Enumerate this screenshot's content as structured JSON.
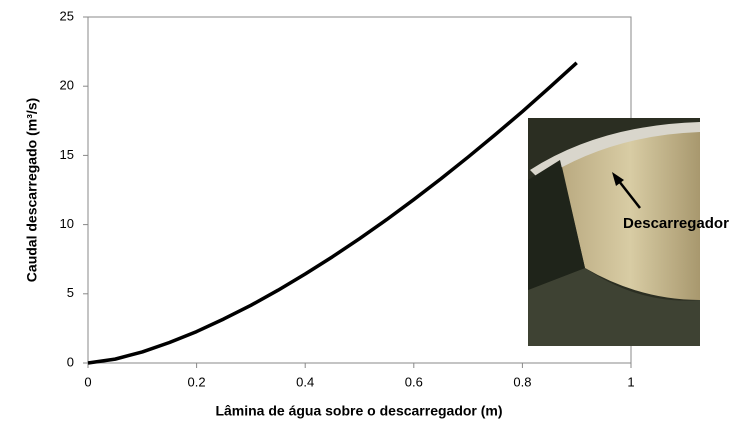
{
  "chart_data": {
    "type": "line",
    "x_label": "Lâmina de água sobre o descarregador (m)",
    "y_label": "Caudal descarregado (m³/s)",
    "annotation": "Descarregador",
    "x": [
      0,
      0.05,
      0.1,
      0.15,
      0.2,
      0.25,
      0.3,
      0.35,
      0.4,
      0.45,
      0.5,
      0.55,
      0.6,
      0.65,
      0.7,
      0.75,
      0.8,
      0.85,
      0.9
    ],
    "series": [
      {
        "color": "#000000",
        "values": [
          0,
          0.28,
          0.8,
          1.48,
          2.27,
          3.18,
          4.17,
          5.26,
          6.43,
          7.67,
          8.98,
          10.36,
          11.81,
          13.31,
          14.88,
          16.5,
          18.17,
          19.91,
          21.69
        ]
      }
    ],
    "xlim": [
      0,
      1
    ],
    "xticks": [
      0,
      0.2,
      0.4,
      0.6,
      0.8,
      1
    ],
    "ylim": [
      0,
      25
    ],
    "yticks": [
      0,
      5,
      10,
      15,
      20,
      25
    ],
    "grid": false
  }
}
